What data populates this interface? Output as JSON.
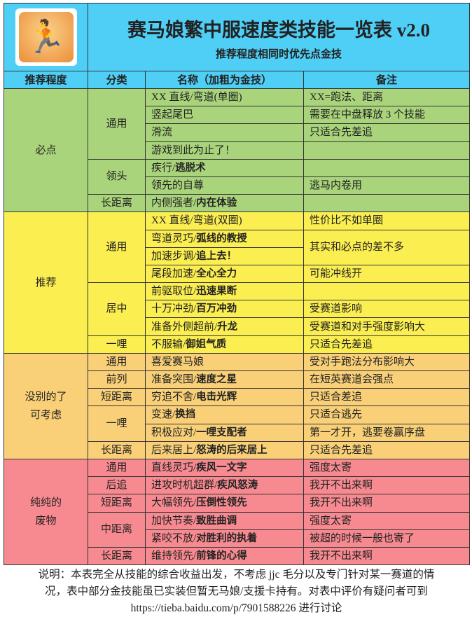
{
  "header": {
    "title": "赛马娘繁中服速度类技能一览表 v2.0",
    "subtitle": "推荐程度相同时优先点金技",
    "logo_icon": "running-skill-icon"
  },
  "columns": [
    "推荐程度",
    "分类",
    "名称（加粗为金技）",
    "备注"
  ],
  "colors": {
    "header": "#4fcff6",
    "必点": "#a9d47b",
    "推荐": "#fbee50",
    "没别的了可考虑": "#f9d077",
    "纯纯的废物": "#f78a90"
  },
  "groups": [
    {
      "level": "必点",
      "color": "#a9d47b",
      "categories": [
        {
          "name": "通用",
          "items": [
            {
              "plain": "XX 直线/弯道(单圈)",
              "bold": "",
              "note": "XX=跑法、距离"
            },
            {
              "plain": "竖起尾巴",
              "bold": "",
              "note": "需要在中盘释放 3 个技能"
            },
            {
              "plain": "滑流",
              "bold": "",
              "note": "只适合先差追"
            },
            {
              "plain": "游戏到此为止了！",
              "bold": "",
              "note": ""
            }
          ]
        },
        {
          "name": "领头",
          "items": [
            {
              "plain": "疾行/",
              "bold": "逃脱术",
              "note": ""
            },
            {
              "plain": "领先的自尊",
              "bold": "",
              "note": "逃马内卷用"
            }
          ]
        },
        {
          "name": "长距离",
          "items": [
            {
              "plain": "内侧强者/",
              "bold": "内在体验",
              "note": ""
            }
          ]
        }
      ]
    },
    {
      "level": "推荐",
      "color": "#fbee50",
      "categories": [
        {
          "name": "通用",
          "items": [
            {
              "plain": "XX 直线/弯道(双圈)",
              "bold": "",
              "note": "性价比不如单圈"
            },
            {
              "plain": "弯道灵巧/",
              "bold": "弧线的教授",
              "note": "其实和必点的差不多",
              "note_span": 2
            },
            {
              "plain": "加速步调/",
              "bold": "追上去！",
              "note_merged": true
            },
            {
              "plain": "尾段加速/",
              "bold": "全心全力",
              "note": "可能冲线开"
            }
          ]
        },
        {
          "name": "居中",
          "items": [
            {
              "plain": "前驱取位/",
              "bold": "迅速果断",
              "note": ""
            },
            {
              "plain": "十万冲劲/",
              "bold": "百万冲劲",
              "note": "受赛道影响"
            },
            {
              "plain": "准备外侧超前/",
              "bold": "升龙",
              "note": "受赛道和对手强度影响大"
            }
          ]
        },
        {
          "name": "一哩",
          "items": [
            {
              "plain": "不服输/",
              "bold": "御姐气质",
              "note": "只适合先差追"
            }
          ]
        }
      ]
    },
    {
      "level": "没别的了\n可考虑",
      "color": "#f9d077",
      "categories": [
        {
          "name": "通用",
          "items": [
            {
              "plain": "喜爱赛马娘",
              "bold": "",
              "note": "受对手跑法分布影响大"
            }
          ]
        },
        {
          "name": "前列",
          "items": [
            {
              "plain": "准备突围/",
              "bold": "速度之星",
              "note": "在短英赛道会强点"
            }
          ]
        },
        {
          "name": "短距离",
          "items": [
            {
              "plain": "穷追不舍/",
              "bold": "电击光辉",
              "note": "只适合差追"
            }
          ]
        },
        {
          "name": "一哩",
          "items": [
            {
              "plain": "变速/",
              "bold": "换挡",
              "note": "只适合逃先"
            },
            {
              "plain": "积极应对/",
              "bold": "一哩支配者",
              "note": "第一才开，逃要卷赢序盘"
            }
          ]
        },
        {
          "name": "长距离",
          "items": [
            {
              "plain": "后来居上/",
              "bold": "怒涛的后来居上",
              "note": "只适合先差追"
            }
          ]
        }
      ]
    },
    {
      "level": "纯纯的\n废物",
      "color": "#f78a90",
      "categories": [
        {
          "name": "通用",
          "items": [
            {
              "plain": "直线灵巧/",
              "bold": "疾风一文字",
              "note": "强度太寄"
            }
          ]
        },
        {
          "name": "后追",
          "items": [
            {
              "plain": "进攻时机超群/",
              "bold": "疾风怒涛",
              "note": "我开不出来啊"
            }
          ]
        },
        {
          "name": "短距离",
          "items": [
            {
              "plain": "大幅领先/",
              "bold": "压倒性领先",
              "note": "我开不出来啊"
            }
          ]
        },
        {
          "name": "中距离",
          "items": [
            {
              "plain": "加快节奏/",
              "bold": "致胜曲调",
              "note": "强度太寄"
            },
            {
              "plain": "紧咬不放/",
              "bold": "对胜利的执着",
              "note": "被超的时候一般也寄了"
            }
          ]
        },
        {
          "name": "长距离",
          "items": [
            {
              "plain": "维持领先/",
              "bold": "前锋的心得",
              "note": "我开不出来啊"
            }
          ]
        }
      ]
    }
  ],
  "footer": {
    "line1": "说明：本表完全从技能的综合收益出发，不考虑 jjc 毛分以及专门针对某一赛道的情",
    "line2": "况，表中部分金技能虽已实装但暂无马娘/支援卡持有。对表中评价有疑问者可到",
    "line3": "https://tieba.baidu.com/p/7901588226 进行讨论"
  }
}
